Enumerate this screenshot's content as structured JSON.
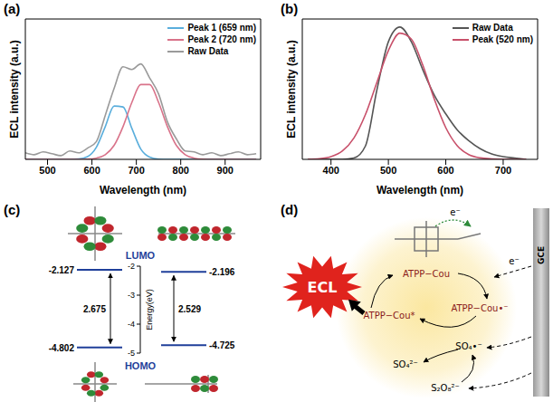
{
  "chart_data": [
    {
      "panel_label": "(a)",
      "type": "line",
      "xlabel": "Wavelength (nm)",
      "ylabel": "ECL intensity (a.u.)",
      "x": [
        450,
        470,
        490,
        510,
        530,
        550,
        570,
        590,
        610,
        630,
        650,
        670,
        690,
        710,
        730,
        750,
        770,
        790,
        810,
        830,
        850,
        870,
        890,
        910,
        930,
        950,
        970
      ],
      "xlim": [
        450,
        980
      ],
      "xticks": [
        500,
        600,
        700,
        800,
        900
      ],
      "ylim": [
        0,
        150
      ],
      "tick_labels": "x",
      "legend": "upper right",
      "series": [
        {
          "name": "Peak 1 (659 nm)",
          "color": "#5aaedc",
          "values": [
            0,
            0,
            0,
            0,
            0,
            0,
            0.4,
            2.9,
            13,
            35,
            57,
            56,
            33,
            11,
            2.4,
            0.3,
            0,
            0,
            0,
            0,
            0,
            0,
            0,
            0,
            0,
            0,
            0
          ]
        },
        {
          "name": "Peak 2 (720 nm)",
          "color": "#d9738a",
          "values": [
            0,
            0,
            0,
            0,
            0,
            0,
            0,
            0.2,
            1.3,
            5,
            15,
            35,
            61,
            80,
            80,
            61,
            35,
            15,
            5,
            1.3,
            0.2,
            0,
            0,
            0,
            0,
            0,
            0
          ]
        },
        {
          "name": "Raw Data",
          "color": "#9a9a9a",
          "values": [
            7,
            5,
            8,
            6,
            4,
            9,
            7,
            12,
            19,
            47,
            76,
            99,
            96,
            102,
            87,
            70,
            40,
            22,
            9,
            8,
            5,
            7,
            4,
            6,
            8,
            5,
            6
          ]
        }
      ]
    },
    {
      "panel_label": "(b)",
      "type": "line",
      "xlabel": "Wavelength (nm)",
      "ylabel": "ECL intensity (a.u.)",
      "x": [
        360,
        380,
        400,
        420,
        440,
        460,
        480,
        500,
        520,
        540,
        560,
        580,
        600,
        620,
        640,
        660,
        680,
        700,
        720,
        740
      ],
      "xlim": [
        350,
        760
      ],
      "xticks": [
        400,
        500,
        600,
        700
      ],
      "ylim": [
        0,
        105
      ],
      "tick_labels": "x",
      "legend": "upper right",
      "series": [
        {
          "name": "Raw Data",
          "color": "#555555",
          "values": [
            0,
            0,
            0,
            0,
            1,
            10,
            52,
            88,
            99,
            88,
            67,
            48,
            34,
            22,
            14,
            8,
            4,
            2,
            1,
            0
          ]
        },
        {
          "name": "Peak  (520 nm)",
          "color": "#c8506a",
          "values": [
            0.1,
            0.5,
            2,
            6.3,
            16,
            33.5,
            57.6,
            81.4,
            94.4,
            89.9,
            70.4,
            45,
            23.7,
            10.2,
            3.6,
            1.1,
            0.3,
            0,
            0,
            0
          ]
        }
      ]
    }
  ],
  "panel_c": {
    "panel_label": "(c)",
    "axis_title": "Energy(eV)",
    "ylim": [
      -5,
      -2
    ],
    "yticks": [
      -2,
      -3,
      -4,
      -5
    ],
    "lumo_label": "LUMO",
    "homo_label": "HOMO",
    "levels": [
      {
        "lumo": -2.127,
        "homo": -4.802,
        "gap": 2.675
      },
      {
        "lumo": -2.196,
        "homo": -4.725,
        "gap": 2.529
      }
    ]
  },
  "panel_d": {
    "panel_label": "(d)",
    "emission": "ECL",
    "electrode": "GCE",
    "ground": "ATPP−Cou",
    "anion": "ATPP−Cou•⁻",
    "excited": "ATPP−Cou*",
    "radical": "SO₄•⁻",
    "sulfate": "SO₄²⁻",
    "persulfate": "S₂O₈²⁻",
    "electron_labels": [
      "e⁻",
      "e⁻"
    ]
  }
}
